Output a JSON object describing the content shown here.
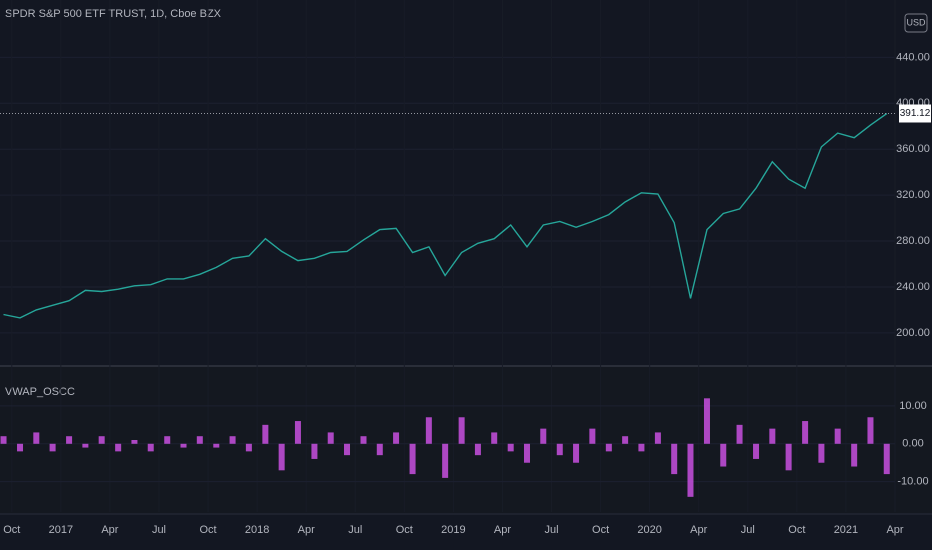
{
  "chart_data": [
    {
      "type": "line",
      "title": "SPDR S&P 500 ETF TRUST, 1D, Cboe BZX",
      "currency": "USD",
      "x": [
        2016.708,
        2016.792,
        2016.875,
        2016.958,
        2017.042,
        2017.125,
        2017.208,
        2017.292,
        2017.375,
        2017.458,
        2017.542,
        2017.625,
        2017.708,
        2017.792,
        2017.875,
        2017.958,
        2018.042,
        2018.125,
        2018.208,
        2018.292,
        2018.375,
        2018.458,
        2018.542,
        2018.625,
        2018.708,
        2018.792,
        2018.875,
        2018.958,
        2019.042,
        2019.125,
        2019.208,
        2019.292,
        2019.375,
        2019.458,
        2019.542,
        2019.625,
        2019.708,
        2019.792,
        2019.875,
        2019.958,
        2020.042,
        2020.125,
        2020.208,
        2020.292,
        2020.375,
        2020.458,
        2020.542,
        2020.625,
        2020.708,
        2020.792,
        2020.875,
        2020.958,
        2021.042,
        2021.125,
        2021.208
      ],
      "values": [
        216,
        213,
        220,
        224,
        228,
        237,
        236,
        238,
        241,
        242,
        247,
        247,
        251,
        257,
        265,
        267,
        282,
        271,
        263,
        265,
        270,
        271,
        281,
        290,
        291,
        270,
        275,
        250,
        270,
        278,
        282,
        294,
        275,
        294,
        297,
        292,
        297,
        303,
        314,
        322,
        321,
        296,
        230,
        290,
        304,
        308,
        326,
        349,
        334,
        326,
        362,
        374,
        370,
        381,
        391
      ],
      "color": "#26a69a",
      "last_price": 391.12,
      "xlim": [
        2016.69,
        2021.25
      ],
      "xticks": [
        {
          "value": 2016.75,
          "label": "Oct"
        },
        2017,
        {
          "value": 2017.25,
          "label": "Apr"
        },
        {
          "value": 2017.5,
          "label": "Jul"
        },
        {
          "value": 2017.75,
          "label": "Oct"
        },
        2018,
        {
          "value": 2018.25,
          "label": "Apr"
        },
        {
          "value": 2018.5,
          "label": "Jul"
        },
        {
          "value": 2018.75,
          "label": "Oct"
        },
        2019,
        {
          "value": 2019.25,
          "label": "Apr"
        },
        {
          "value": 2019.5,
          "label": "Jul"
        },
        {
          "value": 2019.75,
          "label": "Oct"
        },
        2020,
        {
          "value": 2020.25,
          "label": "Apr"
        },
        {
          "value": 2020.5,
          "label": "Jul"
        },
        {
          "value": 2020.75,
          "label": "Oct"
        },
        2021,
        {
          "value": 2021.25,
          "label": "Apr"
        }
      ],
      "ylim": [
        172,
        490
      ],
      "yticks": [
        {
          "value": 200,
          "label": "200.00"
        },
        {
          "value": 240,
          "label": "240.00"
        },
        {
          "value": 280,
          "label": "280.00"
        },
        {
          "value": 320,
          "label": "320.00"
        },
        {
          "value": 360,
          "label": "360.00"
        },
        {
          "value": 400,
          "label": "400.00"
        },
        {
          "value": 440,
          "label": "440.00"
        }
      ]
    },
    {
      "type": "bar",
      "title": "VWAP_OSCC",
      "color": "#c850e0",
      "x": [
        2016.708,
        2016.792,
        2016.875,
        2016.958,
        2017.042,
        2017.125,
        2017.208,
        2017.292,
        2017.375,
        2017.458,
        2017.542,
        2017.625,
        2017.708,
        2017.792,
        2017.875,
        2017.958,
        2018.042,
        2018.125,
        2018.208,
        2018.292,
        2018.375,
        2018.458,
        2018.542,
        2018.625,
        2018.708,
        2018.792,
        2018.875,
        2018.958,
        2019.042,
        2019.125,
        2019.208,
        2019.292,
        2019.375,
        2019.458,
        2019.542,
        2019.625,
        2019.708,
        2019.792,
        2019.875,
        2019.958,
        2020.042,
        2020.125,
        2020.208,
        2020.292,
        2020.375,
        2020.458,
        2020.542,
        2020.625,
        2020.708,
        2020.792,
        2020.875,
        2020.958,
        2021.042,
        2021.125,
        2021.208
      ],
      "values": [
        2,
        -2,
        3,
        -2,
        2,
        -1,
        2,
        -2,
        1,
        -2,
        2,
        -1,
        2,
        -1,
        2,
        -2,
        5,
        -7,
        6,
        -4,
        3,
        -3,
        2,
        -3,
        3,
        -8,
        7,
        -9,
        7,
        -3,
        3,
        -2,
        -5,
        4,
        -3,
        -5,
        4,
        -2,
        2,
        -2,
        3,
        -8,
        -14,
        12,
        -6,
        5,
        -4,
        4,
        -7,
        6,
        -5,
        4,
        -6,
        7,
        -8
      ],
      "xlim": [
        2016.69,
        2021.25
      ],
      "ylim": [
        -18,
        20
      ],
      "yticks": [
        {
          "value": -10,
          "label": "-10.00"
        },
        {
          "value": 0,
          "label": "0.00"
        },
        {
          "value": 10,
          "label": "10.00"
        }
      ]
    }
  ]
}
